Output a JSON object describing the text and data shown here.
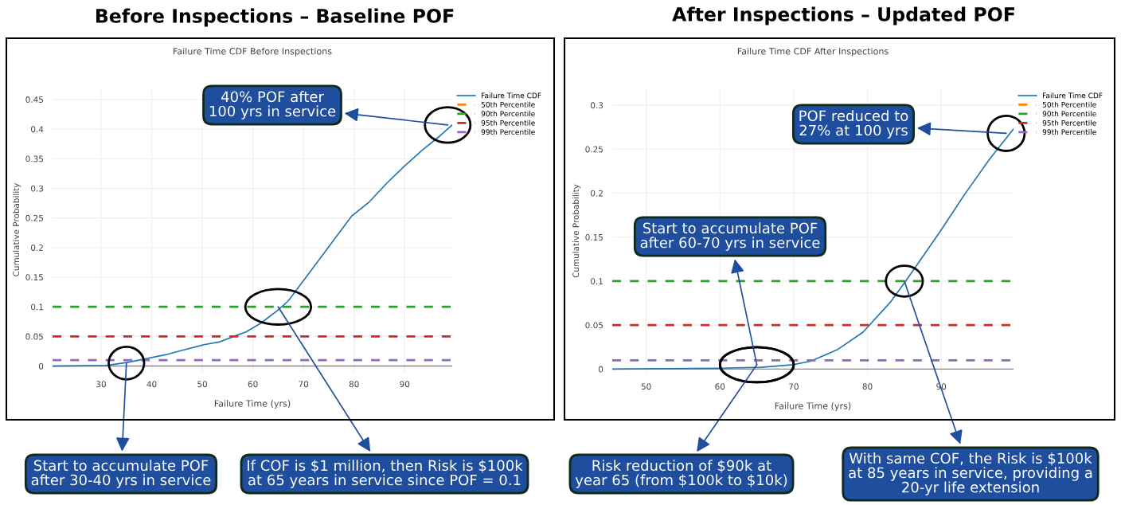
{
  "chart_data": [
    {
      "type": "line",
      "title": "Before Inspections – Baseline POF",
      "subtitle": "Failure Time CDF Before Inspections",
      "xlabel": "Failure Time (yrs)",
      "ylabel": "Cumulative Probability",
      "xlim": [
        20.4,
        99.4
      ],
      "ylim": [
        -0.01,
        0.47
      ],
      "xticks": [
        30,
        40,
        50,
        60,
        70,
        80,
        90
      ],
      "yticks": [
        0,
        0.05,
        0.1,
        0.15,
        0.2,
        0.25,
        0.3,
        0.35,
        0.4,
        0.45
      ],
      "grid": true,
      "legend": "top right",
      "series": [
        {
          "name": "Failure Time CDF",
          "color": "#1f77b4",
          "line_style": "solid",
          "x": [
            20.4,
            30.9,
            35.1,
            39.2,
            42.7,
            46.2,
            50.3,
            53.5,
            55.9,
            58.7,
            61.5,
            64.9,
            67,
            69.8,
            72.6,
            76,
            79.5,
            83,
            86.5,
            89.9,
            93.4,
            96.9,
            99.4
          ],
          "values": [
            0,
            0.001,
            0.006,
            0.013,
            0.019,
            0.027,
            0.036,
            0.041,
            0.049,
            0.058,
            0.072,
            0.094,
            0.11,
            0.142,
            0.174,
            0.213,
            0.253,
            0.277,
            0.309,
            0.337,
            0.364,
            0.388,
            0.407
          ]
        },
        {
          "name": "50th Percentile",
          "color": "#ff7f0e",
          "line_style": "dashed",
          "values": [
            null,
            null
          ]
        },
        {
          "name": "90th Percentile",
          "color": "#2ca02c",
          "line_style": "dashed",
          "x": [
            20.4,
            99.4
          ],
          "values": [
            0.1,
            0.1
          ]
        },
        {
          "name": "95th Percentile",
          "color": "#d62728",
          "line_style": "dashed",
          "x": [
            20.4,
            99.4
          ],
          "values": [
            0.05,
            0.05
          ]
        },
        {
          "name": "99th Percentile",
          "color": "#9467bd",
          "line_style": "dashed",
          "x": [
            20.4,
            99.4
          ],
          "values": [
            0.01,
            0.01
          ]
        }
      ],
      "annotations": [
        {
          "text": "40% POF after\n100 yrs in service",
          "x": 98.5,
          "y": 0.407
        },
        {
          "text": "Start to accumulate POF\nafter 30-40 yrs in service",
          "x": 35,
          "y": 0.005
        },
        {
          "text": "If COF is $1 million, then Risk is $100k\nat 65 years in service since POF = 0.1",
          "x": 65,
          "y": 0.1
        }
      ]
    },
    {
      "type": "line",
      "title": "After Inspections – Updated POF",
      "subtitle": "Failure Time CDF After Inspections",
      "xlabel": "Failure Time (yrs)",
      "ylabel": "Cumulative Probability",
      "xlim": [
        45.4,
        99.8
      ],
      "ylim": [
        -0.006,
        0.32
      ],
      "xticks": [
        50,
        60,
        70,
        80,
        90
      ],
      "yticks": [
        0,
        0.05,
        0.1,
        0.15,
        0.2,
        0.25,
        0.3
      ],
      "grid": true,
      "legend": "top right",
      "series": [
        {
          "name": "Failure Time CDF",
          "color": "#1f77b4",
          "line_style": "solid",
          "x": [
            45.4,
            59.9,
            65.6,
            69.9,
            72.3,
            75.9,
            79.4,
            83.2,
            85.1,
            87,
            89.9,
            93.2,
            96.5,
            99.8
          ],
          "values": [
            0,
            0.001,
            0.002,
            0.005,
            0.009,
            0.022,
            0.042,
            0.077,
            0.099,
            0.122,
            0.157,
            0.199,
            0.238,
            0.273
          ]
        },
        {
          "name": "50th Percentile",
          "color": "#ff7f0e",
          "line_style": "dashed",
          "values": [
            null,
            null
          ]
        },
        {
          "name": "90th Percentile",
          "color": "#2ca02c",
          "line_style": "dashed",
          "x": [
            45.4,
            99.8
          ],
          "values": [
            0.1,
            0.1
          ]
        },
        {
          "name": "95th Percentile",
          "color": "#d62728",
          "line_style": "dashed",
          "x": [
            45.4,
            99.8
          ],
          "values": [
            0.05,
            0.05
          ]
        },
        {
          "name": "99th Percentile",
          "color": "#9467bd",
          "line_style": "dashed",
          "x": [
            45.4,
            99.8
          ],
          "values": [
            0.01,
            0.01
          ]
        }
      ],
      "annotations": [
        {
          "text": "POF reduced to\n27% at 100 yrs",
          "x": 98.8,
          "y": 0.268
        },
        {
          "text": "Start to accumulate POF\nafter 60-70 yrs in service",
          "x": 65,
          "y": 0.005
        },
        {
          "text": "Risk reduction of $90k at\nyear 65 (from $100k to $10k)",
          "x": 65,
          "y": 0.005
        },
        {
          "text": "With same COF, the Risk is $100k\nat 85 years in service, providing a\n20-yr life extension",
          "x": 85,
          "y": 0.1
        }
      ]
    }
  ]
}
